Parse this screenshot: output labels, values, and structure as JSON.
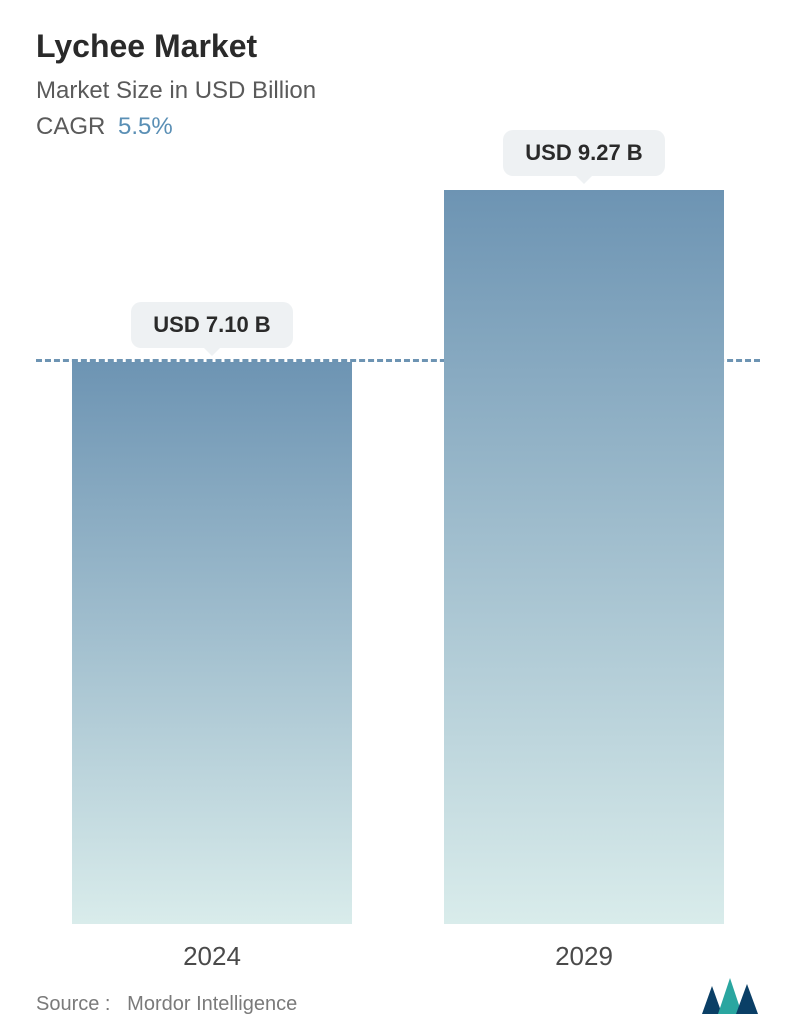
{
  "header": {
    "title": "Lychee Market",
    "subtitle": "Market Size in USD Billion",
    "cagr_label": "CAGR",
    "cagr_value": "5.5%"
  },
  "chart": {
    "type": "bar",
    "bars": [
      {
        "category": "2024",
        "value": 7.1,
        "label": "USD 7.10 B",
        "height_pct": 76.6
      },
      {
        "category": "2029",
        "value": 9.27,
        "label": "USD 9.27 B",
        "height_pct": 100
      }
    ],
    "dashed_line_at_pct": 76.6,
    "dashed_line_color": "#6d94b3",
    "bar_gradient_top": "#6d94b3",
    "bar_gradient_bottom": "#d9eceb",
    "bubble_bg": "#eef1f3",
    "bubble_text_color": "#2a2a2a",
    "title_color": "#2a2a2a",
    "subtitle_color": "#5a5a5a",
    "cagr_value_color": "#5a8fb5",
    "xlabel_color": "#4a4a4a",
    "xlabel_fontsize": 26,
    "bubble_fontsize": 22,
    "title_fontsize": 32,
    "subtitle_fontsize": 24,
    "background_color": "#ffffff"
  },
  "footer": {
    "source_label": "Source :",
    "source_name": "Mordor Intelligence",
    "logo_color_dark": "#0a3f66",
    "logo_color_teal": "#2aa6a0"
  }
}
